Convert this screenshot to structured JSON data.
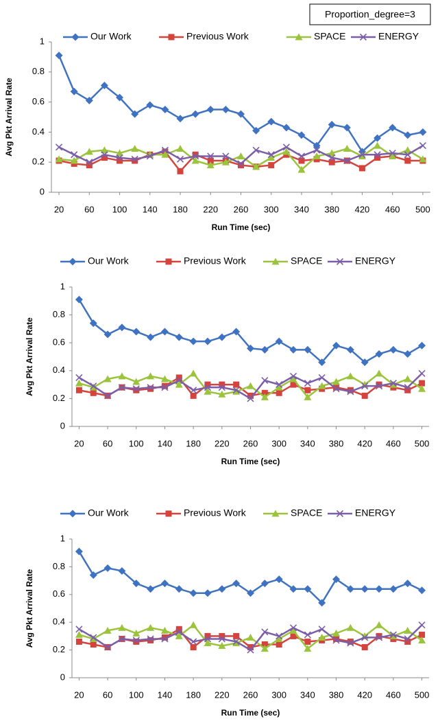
{
  "chart_data": [
    {
      "type": "line",
      "annotation": "Proportion_degree=3",
      "ylabel": "Avg Pkt Arrival Rate",
      "xlabel": "Run Time (sec)",
      "x": [
        20,
        40,
        60,
        80,
        100,
        120,
        140,
        160,
        180,
        200,
        220,
        240,
        260,
        280,
        300,
        320,
        340,
        360,
        380,
        400,
        420,
        440,
        460,
        480,
        500
      ],
      "xlim": [
        10,
        510
      ],
      "xticks": [
        20,
        60,
        100,
        140,
        180,
        220,
        260,
        300,
        340,
        380,
        420,
        460,
        500
      ],
      "ylim": [
        0,
        1
      ],
      "yticks": [
        0,
        0.2,
        0.4,
        0.6,
        0.8,
        1
      ],
      "series": [
        {
          "name": "Our Work",
          "color": "#3f72c0",
          "values": [
            0.91,
            0.67,
            0.61,
            0.71,
            0.63,
            0.52,
            0.58,
            0.55,
            0.49,
            0.52,
            0.55,
            0.55,
            0.52,
            0.41,
            0.47,
            0.43,
            0.38,
            0.31,
            0.45,
            0.43,
            0.27,
            0.36,
            0.43,
            0.38,
            0.4
          ]
        },
        {
          "name": "Previous Work",
          "color": "#d4433c",
          "values": [
            0.21,
            0.19,
            0.18,
            0.23,
            0.21,
            0.21,
            0.25,
            0.27,
            0.14,
            0.25,
            0.21,
            0.21,
            0.18,
            0.17,
            0.18,
            0.25,
            0.21,
            0.22,
            0.2,
            0.21,
            0.16,
            0.23,
            0.24,
            0.21,
            0.21
          ]
        },
        {
          "name": "SPACE",
          "color": "#9bc33c",
          "values": [
            0.22,
            0.21,
            0.27,
            0.28,
            0.26,
            0.29,
            0.25,
            0.25,
            0.29,
            0.21,
            0.18,
            0.2,
            0.24,
            0.17,
            0.23,
            0.27,
            0.15,
            0.24,
            0.26,
            0.29,
            0.24,
            0.31,
            0.24,
            0.28,
            0.22
          ]
        },
        {
          "name": "ENERGY",
          "color": "#7b5ea7",
          "values": [
            0.3,
            0.25,
            0.2,
            0.25,
            0.23,
            0.22,
            0.24,
            0.28,
            0.22,
            0.24,
            0.24,
            0.24,
            0.19,
            0.28,
            0.25,
            0.3,
            0.24,
            0.28,
            0.23,
            0.21,
            0.25,
            0.25,
            0.26,
            0.25,
            0.31
          ]
        }
      ]
    },
    {
      "type": "line",
      "ylabel": "Avg Pkt Arrival Rate",
      "xlabel": "Run Time (sec)",
      "x": [
        20,
        40,
        60,
        80,
        100,
        120,
        140,
        160,
        180,
        200,
        220,
        240,
        260,
        280,
        300,
        320,
        340,
        360,
        380,
        400,
        420,
        440,
        460,
        480,
        500
      ],
      "xlim": [
        10,
        510
      ],
      "xticks": [
        20,
        60,
        100,
        140,
        180,
        220,
        260,
        300,
        340,
        380,
        420,
        460,
        500
      ],
      "ylim": [
        0,
        1
      ],
      "yticks": [
        0,
        0.2,
        0.4,
        0.6,
        0.8,
        1
      ],
      "series": [
        {
          "name": "Our Work",
          "color": "#3f72c0",
          "values": [
            0.91,
            0.74,
            0.66,
            0.71,
            0.68,
            0.64,
            0.68,
            0.64,
            0.61,
            0.61,
            0.64,
            0.68,
            0.56,
            0.55,
            0.61,
            0.55,
            0.55,
            0.46,
            0.58,
            0.55,
            0.46,
            0.52,
            0.55,
            0.52,
            0.58
          ]
        },
        {
          "name": "Previous Work",
          "color": "#d4433c",
          "values": [
            0.26,
            0.24,
            0.22,
            0.28,
            0.26,
            0.27,
            0.29,
            0.35,
            0.22,
            0.3,
            0.3,
            0.3,
            0.22,
            0.24,
            0.24,
            0.3,
            0.26,
            0.27,
            0.28,
            0.26,
            0.22,
            0.3,
            0.28,
            0.26,
            0.31
          ]
        },
        {
          "name": "SPACE",
          "color": "#9bc33c",
          "values": [
            0.31,
            0.28,
            0.34,
            0.36,
            0.32,
            0.36,
            0.34,
            0.3,
            0.38,
            0.25,
            0.23,
            0.25,
            0.29,
            0.21,
            0.28,
            0.34,
            0.21,
            0.29,
            0.32,
            0.36,
            0.3,
            0.38,
            0.3,
            0.34,
            0.27
          ]
        },
        {
          "name": "ENERGY",
          "color": "#7b5ea7",
          "values": [
            0.35,
            0.29,
            0.22,
            0.28,
            0.27,
            0.28,
            0.28,
            0.33,
            0.26,
            0.28,
            0.28,
            0.26,
            0.2,
            0.33,
            0.3,
            0.36,
            0.31,
            0.35,
            0.27,
            0.25,
            0.29,
            0.29,
            0.31,
            0.28,
            0.38
          ]
        }
      ]
    },
    {
      "type": "line",
      "ylabel": "Avg Pkt Arrival Rate",
      "xlabel": "Run Time (sec)",
      "x": [
        20,
        40,
        60,
        80,
        100,
        120,
        140,
        160,
        180,
        200,
        220,
        240,
        260,
        280,
        300,
        320,
        340,
        360,
        380,
        400,
        420,
        440,
        460,
        480,
        500
      ],
      "xlim": [
        10,
        510
      ],
      "xticks": [
        20,
        60,
        100,
        140,
        180,
        220,
        260,
        300,
        340,
        380,
        420,
        460,
        500
      ],
      "ylim": [
        0,
        1
      ],
      "yticks": [
        0,
        0.2,
        0.4,
        0.6,
        0.8,
        1
      ],
      "series": [
        {
          "name": "Our Work",
          "color": "#3f72c0",
          "values": [
            0.91,
            0.74,
            0.79,
            0.77,
            0.68,
            0.64,
            0.68,
            0.64,
            0.61,
            0.61,
            0.64,
            0.68,
            0.61,
            0.68,
            0.71,
            0.64,
            0.64,
            0.54,
            0.71,
            0.64,
            0.64,
            0.64,
            0.64,
            0.68,
            0.63
          ]
        },
        {
          "name": "Previous Work",
          "color": "#d4433c",
          "values": [
            0.26,
            0.24,
            0.22,
            0.28,
            0.26,
            0.27,
            0.29,
            0.35,
            0.22,
            0.3,
            0.3,
            0.3,
            0.22,
            0.24,
            0.24,
            0.3,
            0.26,
            0.27,
            0.28,
            0.26,
            0.22,
            0.3,
            0.28,
            0.26,
            0.31
          ]
        },
        {
          "name": "SPACE",
          "color": "#9bc33c",
          "values": [
            0.31,
            0.28,
            0.34,
            0.36,
            0.32,
            0.36,
            0.34,
            0.3,
            0.38,
            0.25,
            0.23,
            0.25,
            0.29,
            0.21,
            0.28,
            0.34,
            0.21,
            0.29,
            0.32,
            0.36,
            0.3,
            0.38,
            0.3,
            0.34,
            0.27
          ]
        },
        {
          "name": "ENERGY",
          "color": "#7b5ea7",
          "values": [
            0.35,
            0.29,
            0.22,
            0.28,
            0.27,
            0.28,
            0.28,
            0.33,
            0.26,
            0.28,
            0.28,
            0.26,
            0.2,
            0.33,
            0.3,
            0.36,
            0.31,
            0.35,
            0.27,
            0.25,
            0.29,
            0.29,
            0.31,
            0.28,
            0.38
          ]
        }
      ]
    }
  ]
}
